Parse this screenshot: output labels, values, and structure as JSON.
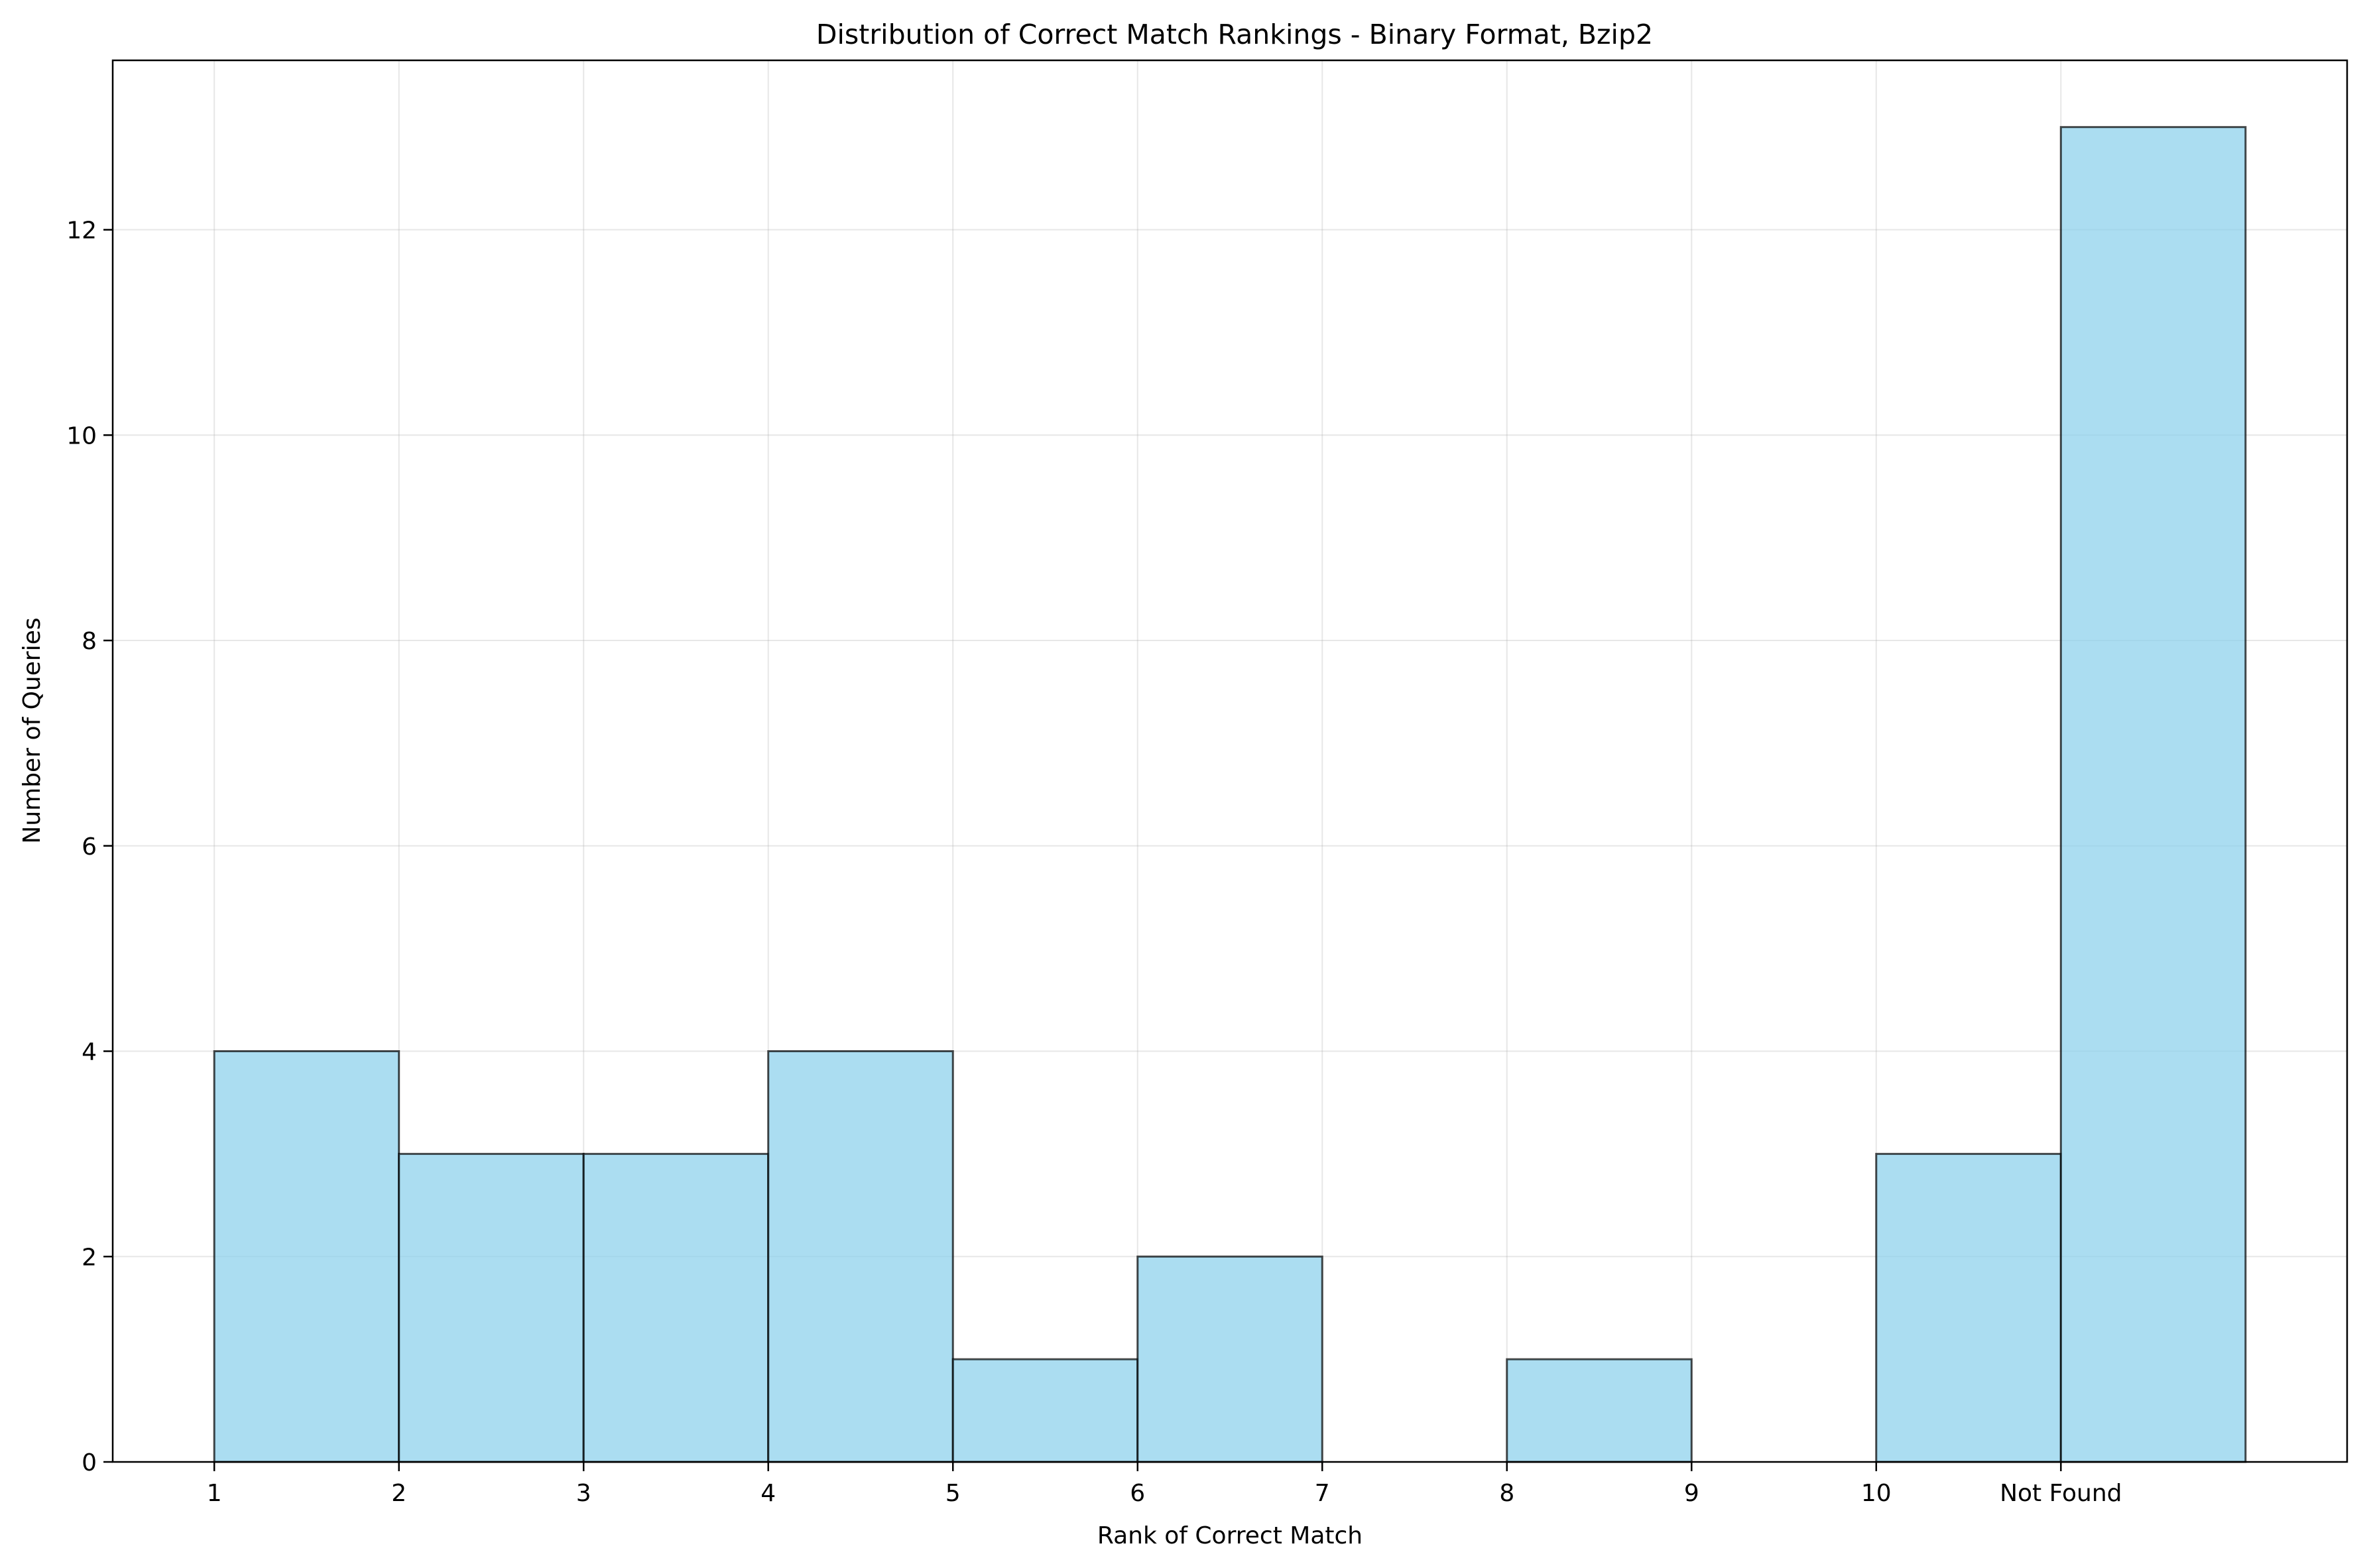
{
  "chart_data": {
    "type": "bar",
    "title": "Distribution of Correct Match Rankings - Binary Format, Bzip2",
    "xlabel": "Rank of Correct Match",
    "ylabel": "Number of Queries",
    "x_tick_labels": [
      "1",
      "2",
      "3",
      "4",
      "5",
      "6",
      "7",
      "8",
      "9",
      "10",
      "Not Found"
    ],
    "y_ticks": [
      0,
      2,
      4,
      6,
      8,
      10,
      12
    ],
    "ylim": [
      0,
      13.65
    ],
    "xlim": [
      0.45,
      12.55
    ],
    "bins": [
      {
        "start": 1,
        "end": 2,
        "value": 4
      },
      {
        "start": 2,
        "end": 3,
        "value": 3
      },
      {
        "start": 3,
        "end": 4,
        "value": 3
      },
      {
        "start": 4,
        "end": 5,
        "value": 4
      },
      {
        "start": 5,
        "end": 6,
        "value": 1
      },
      {
        "start": 6,
        "end": 7,
        "value": 2
      },
      {
        "start": 7,
        "end": 8,
        "value": 0
      },
      {
        "start": 8,
        "end": 9,
        "value": 1
      },
      {
        "start": 9,
        "end": 10,
        "value": 0
      },
      {
        "start": 10,
        "end": 11,
        "value": 3
      },
      {
        "start": 11,
        "end": 12,
        "value": 13
      }
    ],
    "bar_color": "#87ceeb",
    "edge_color": "#000000",
    "grid": true,
    "legend": "none"
  }
}
